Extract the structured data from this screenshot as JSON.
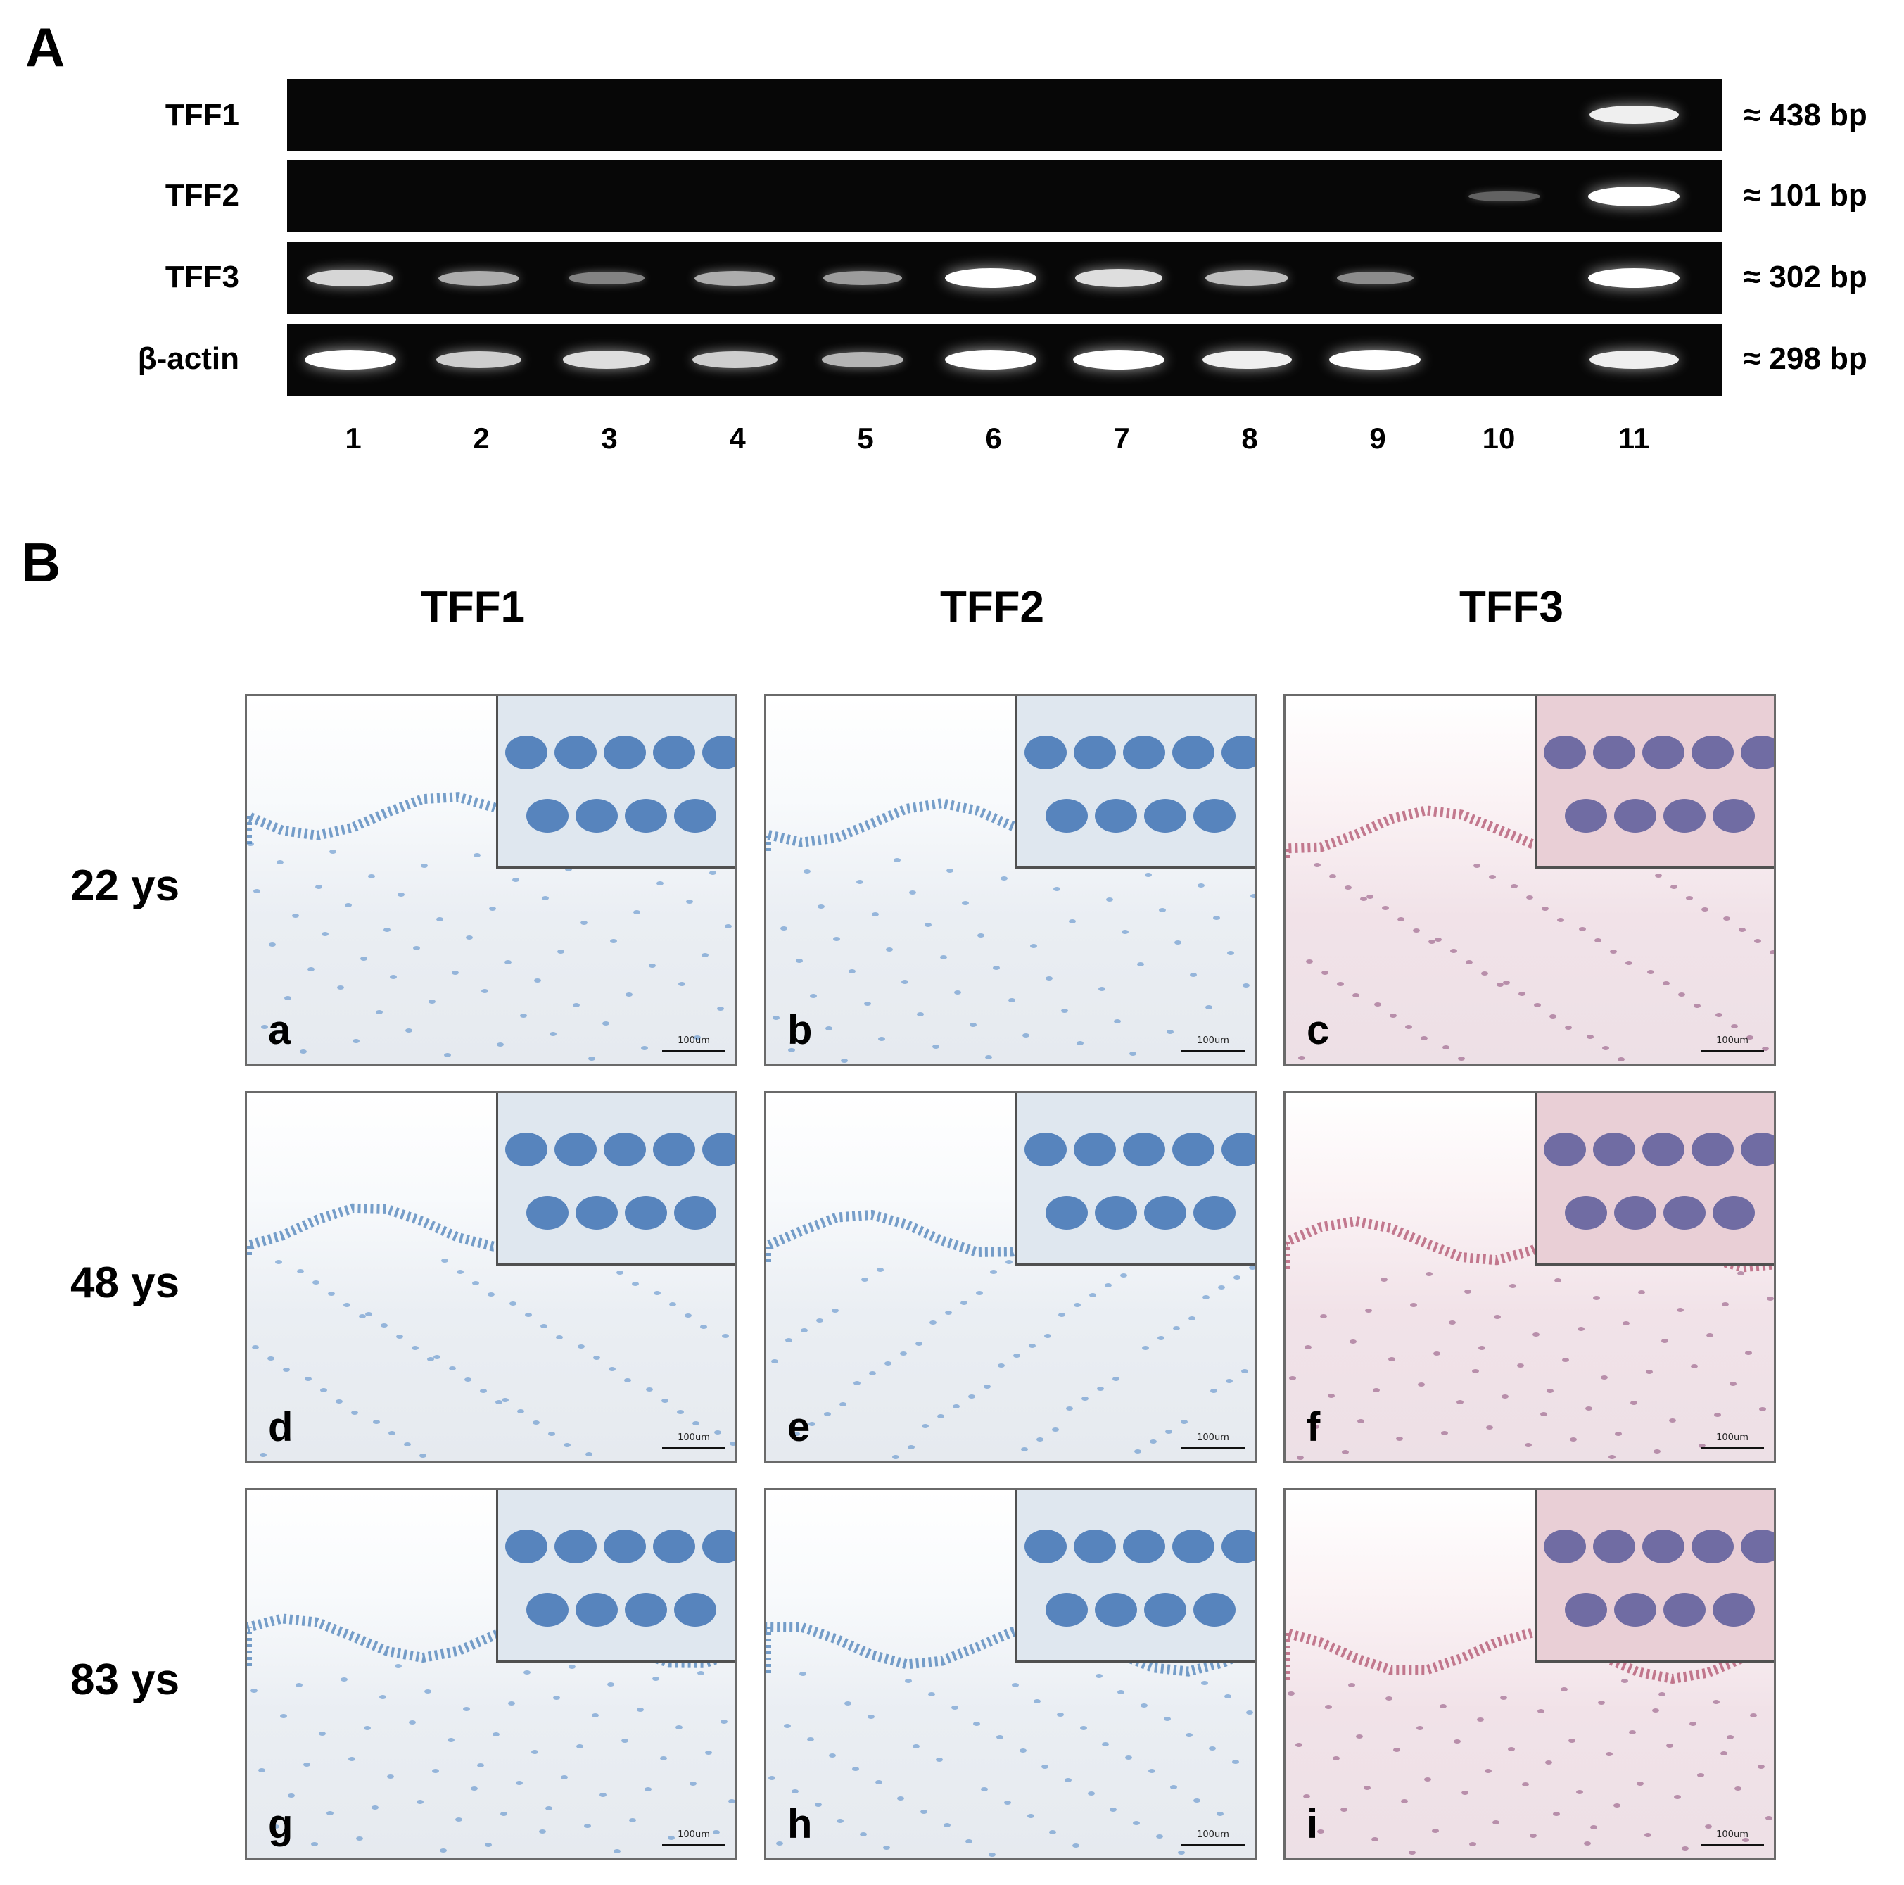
{
  "panels": {
    "a": "A",
    "b": "B"
  },
  "gel": {
    "rows": [
      {
        "label": "TFF1",
        "size": "≈ 438 bp"
      },
      {
        "label": "TFF2",
        "size": "≈ 101 bp"
      },
      {
        "label": "TFF3",
        "size": "≈ 302 bp"
      },
      {
        "label": "β-actin",
        "size": "≈ 298 bp"
      }
    ],
    "lanes": [
      "1",
      "2",
      "3",
      "4",
      "5",
      "6",
      "7",
      "8",
      "9",
      "10",
      "11"
    ],
    "band_intensity": {
      "TFF1": [
        0,
        0,
        0,
        0,
        0,
        0,
        0,
        0,
        0,
        0,
        0.9
      ],
      "TFF2": [
        0,
        0,
        0,
        0,
        0,
        0,
        0,
        0,
        0,
        0.05,
        1.0
      ],
      "TFF3": [
        0.75,
        0.5,
        0.25,
        0.5,
        0.4,
        1.0,
        0.8,
        0.6,
        0.3,
        0,
        1.0
      ],
      "β-actin": [
        1.0,
        0.7,
        0.8,
        0.7,
        0.55,
        1.0,
        1.0,
        0.9,
        1.0,
        0,
        0.9
      ]
    }
  },
  "micro": {
    "columns": [
      "TFF1",
      "TFF2",
      "TFF3"
    ],
    "rows": [
      "22 ys",
      "48 ys",
      "83 ys"
    ],
    "panels": [
      {
        "letter": "a",
        "scale": "100um",
        "stain": "blue"
      },
      {
        "letter": "b",
        "scale": "100um",
        "stain": "blue"
      },
      {
        "letter": "c",
        "scale": "100um",
        "stain": "red"
      },
      {
        "letter": "d",
        "scale": "100um",
        "stain": "blue"
      },
      {
        "letter": "e",
        "scale": "100um",
        "stain": "blue"
      },
      {
        "letter": "f",
        "scale": "100um",
        "stain": "red"
      },
      {
        "letter": "g",
        "scale": "100um",
        "stain": "blue"
      },
      {
        "letter": "h",
        "scale": "100um",
        "stain": "blue"
      },
      {
        "letter": "i",
        "scale": "100um",
        "stain": "red"
      }
    ]
  }
}
